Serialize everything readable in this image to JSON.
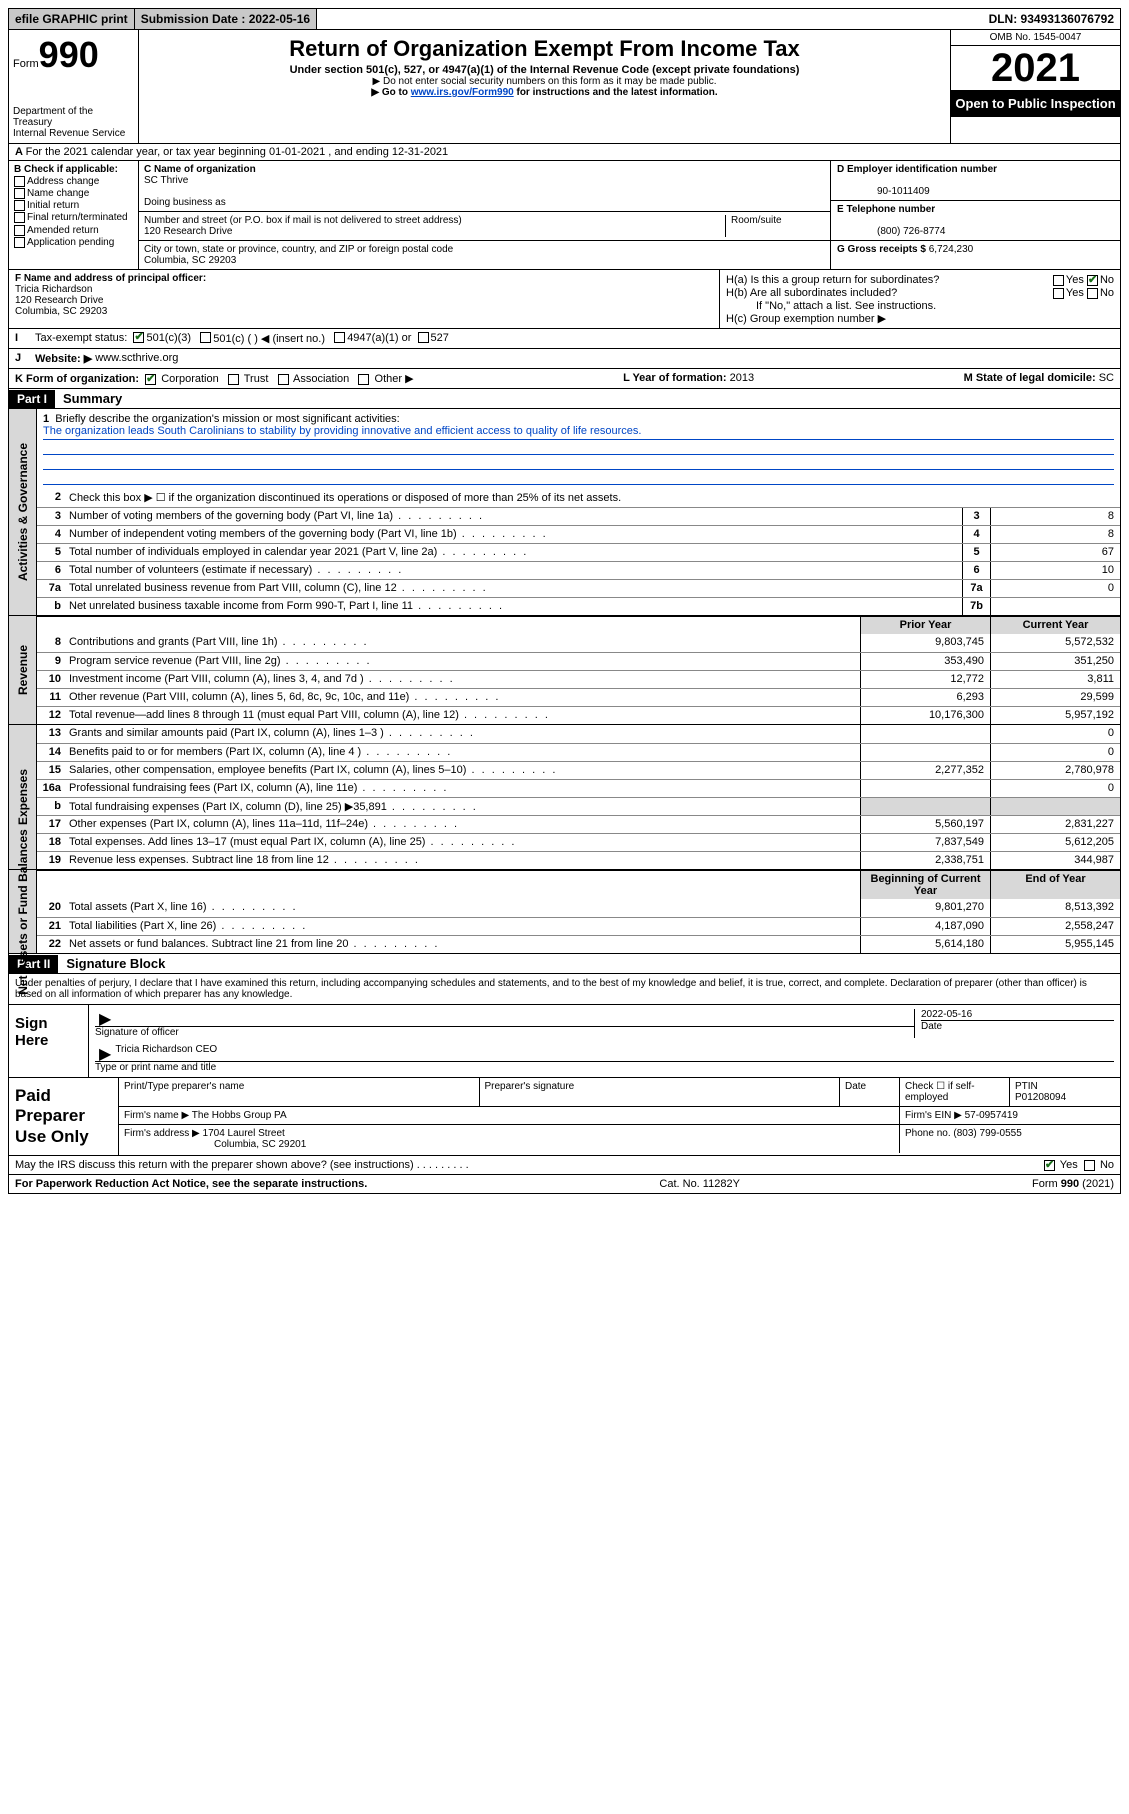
{
  "topbar": {
    "efile": "efile GRAPHIC print",
    "submission_label": "Submission Date : 2022-05-16",
    "dln": "DLN: 93493136076792"
  },
  "header": {
    "form_word": "Form",
    "form_number": "990",
    "dept": "Department of the Treasury",
    "irs": "Internal Revenue Service",
    "title": "Return of Organization Exempt From Income Tax",
    "subtitle": "Under section 501(c), 527, or 4947(a)(1) of the Internal Revenue Code (except private foundations)",
    "warn1": "▶ Do not enter social security numbers on this form as it may be made public.",
    "warn2_pre": "▶ Go to ",
    "warn2_link": "www.irs.gov/Form990",
    "warn2_post": " for instructions and the latest information.",
    "omb": "OMB No. 1545-0047",
    "year": "2021",
    "open": "Open to Public Inspection"
  },
  "rowA": "For the 2021 calendar year, or tax year beginning 01-01-2021   , and ending 12-31-2021",
  "colB": {
    "title": "B Check if applicable:",
    "items": [
      "Address change",
      "Name change",
      "Initial return",
      "Final return/terminated",
      "Amended return",
      "Application pending"
    ]
  },
  "colC": {
    "name_label": "C Name of organization",
    "name": "SC Thrive",
    "dba_label": "Doing business as",
    "street_label": "Number and street (or P.O. box if mail is not delivered to street address)",
    "room_label": "Room/suite",
    "street": "120 Research Drive",
    "city_label": "City or town, state or province, country, and ZIP or foreign postal code",
    "city": "Columbia, SC  29203"
  },
  "colD": {
    "label": "D Employer identification number",
    "value": "90-1011409"
  },
  "colE": {
    "label": "E Telephone number",
    "value": "(800) 726-8774"
  },
  "colG": {
    "label": "G Gross receipts $",
    "value": "6,724,230"
  },
  "colF": {
    "label": "F  Name and address of principal officer:",
    "name": "Tricia Richardson",
    "addr1": "120 Research Drive",
    "addr2": "Columbia, SC  29203"
  },
  "colH": {
    "a": "H(a)  Is this a group return for subordinates?",
    "b": "H(b)  Are all subordinates included?",
    "b_note": "If \"No,\" attach a list. See instructions.",
    "c": "H(c)  Group exemption number ▶",
    "yes": "Yes",
    "no": "No"
  },
  "rowI": {
    "label": "Tax-exempt status:",
    "opts": [
      "501(c)(3)",
      "501(c) (  ) ◀ (insert no.)",
      "4947(a)(1) or",
      "527"
    ]
  },
  "rowJ": {
    "label": "Website: ▶",
    "value": "www.scthrive.org"
  },
  "rowK": {
    "label": "K Form of organization:",
    "opts": [
      "Corporation",
      "Trust",
      "Association",
      "Other ▶"
    ],
    "l_label": "L Year of formation:",
    "l_val": "2013",
    "m_label": "M State of legal domicile:",
    "m_val": "SC"
  },
  "part1": {
    "hdr": "Part I",
    "title": "Summary"
  },
  "mission": {
    "q1": "Briefly describe the organization's mission or most significant activities:",
    "text": "The organization leads South Carolinians to stability by providing innovative and efficient access to quality of life resources."
  },
  "lines_gov": [
    {
      "n": "2",
      "d": "Check this box ▶ ☐  if the organization discontinued its operations or disposed of more than 25% of its net assets."
    },
    {
      "n": "3",
      "d": "Number of voting members of the governing body (Part VI, line 1a)",
      "box": "3",
      "v": "8"
    },
    {
      "n": "4",
      "d": "Number of independent voting members of the governing body (Part VI, line 1b)",
      "box": "4",
      "v": "8"
    },
    {
      "n": "5",
      "d": "Total number of individuals employed in calendar year 2021 (Part V, line 2a)",
      "box": "5",
      "v": "67"
    },
    {
      "n": "6",
      "d": "Total number of volunteers (estimate if necessary)",
      "box": "6",
      "v": "10"
    },
    {
      "n": "7a",
      "d": "Total unrelated business revenue from Part VIII, column (C), line 12",
      "box": "7a",
      "v": "0"
    },
    {
      "n": "b",
      "d": "Net unrelated business taxable income from Form 990-T, Part I, line 11",
      "box": "7b",
      "v": ""
    }
  ],
  "rev_hdr": {
    "prior": "Prior Year",
    "curr": "Current Year"
  },
  "lines_rev": [
    {
      "n": "8",
      "d": "Contributions and grants (Part VIII, line 1h)",
      "p": "9,803,745",
      "c": "5,572,532"
    },
    {
      "n": "9",
      "d": "Program service revenue (Part VIII, line 2g)",
      "p": "353,490",
      "c": "351,250"
    },
    {
      "n": "10",
      "d": "Investment income (Part VIII, column (A), lines 3, 4, and 7d )",
      "p": "12,772",
      "c": "3,811"
    },
    {
      "n": "11",
      "d": "Other revenue (Part VIII, column (A), lines 5, 6d, 8c, 9c, 10c, and 11e)",
      "p": "6,293",
      "c": "29,599"
    },
    {
      "n": "12",
      "d": "Total revenue—add lines 8 through 11 (must equal Part VIII, column (A), line 12)",
      "p": "10,176,300",
      "c": "5,957,192"
    }
  ],
  "lines_exp": [
    {
      "n": "13",
      "d": "Grants and similar amounts paid (Part IX, column (A), lines 1–3 )",
      "p": "",
      "c": "0"
    },
    {
      "n": "14",
      "d": "Benefits paid to or for members (Part IX, column (A), line 4 )",
      "p": "",
      "c": "0"
    },
    {
      "n": "15",
      "d": "Salaries, other compensation, employee benefits (Part IX, column (A), lines 5–10)",
      "p": "2,277,352",
      "c": "2,780,978"
    },
    {
      "n": "16a",
      "d": "Professional fundraising fees (Part IX, column (A), line 11e)",
      "p": "",
      "c": "0"
    },
    {
      "n": "b",
      "d": "Total fundraising expenses (Part IX, column (D), line 25) ▶35,891",
      "p": "grey",
      "c": "grey"
    },
    {
      "n": "17",
      "d": "Other expenses (Part IX, column (A), lines 11a–11d, 11f–24e)",
      "p": "5,560,197",
      "c": "2,831,227"
    },
    {
      "n": "18",
      "d": "Total expenses. Add lines 13–17 (must equal Part IX, column (A), line 25)",
      "p": "7,837,549",
      "c": "5,612,205"
    },
    {
      "n": "19",
      "d": "Revenue less expenses. Subtract line 18 from line 12",
      "p": "2,338,751",
      "c": "344,987"
    }
  ],
  "net_hdr": {
    "begin": "Beginning of Current Year",
    "end": "End of Year"
  },
  "lines_net": [
    {
      "n": "20",
      "d": "Total assets (Part X, line 16)",
      "p": "9,801,270",
      "c": "8,513,392"
    },
    {
      "n": "21",
      "d": "Total liabilities (Part X, line 26)",
      "p": "4,187,090",
      "c": "2,558,247"
    },
    {
      "n": "22",
      "d": "Net assets or fund balances. Subtract line 21 from line 20",
      "p": "5,614,180",
      "c": "5,955,145"
    }
  ],
  "sides": {
    "gov": "Activities & Governance",
    "rev": "Revenue",
    "exp": "Expenses",
    "net": "Net Assets or Fund Balances"
  },
  "part2": {
    "hdr": "Part II",
    "title": "Signature Block"
  },
  "sig": {
    "decl": "Under penalties of perjury, I declare that I have examined this return, including accompanying schedules and statements, and to the best of my knowledge and belief, it is true, correct, and complete. Declaration of preparer (other than officer) is based on all information of which preparer has any knowledge.",
    "sign_here": "Sign Here",
    "sig_officer": "Signature of officer",
    "date": "Date",
    "date_val": "2022-05-16",
    "name_title": "Tricia Richardson CEO",
    "type_label": "Type or print name and title"
  },
  "prep": {
    "title": "Paid Preparer Use Only",
    "h1": "Print/Type preparer's name",
    "h2": "Preparer's signature",
    "h3": "Date",
    "check": "Check ☐ if self-employed",
    "ptin_l": "PTIN",
    "ptin": "P01208094",
    "firm_l": "Firm's name  ▶",
    "firm": "The Hobbs Group PA",
    "ein_l": "Firm's EIN ▶",
    "ein": "57-0957419",
    "addr_l": "Firm's address ▶",
    "addr1": "1704 Laurel Street",
    "addr2": "Columbia, SC  29201",
    "phone_l": "Phone no.",
    "phone": "(803) 799-0555"
  },
  "footer": {
    "discuss": "May the IRS discuss this return with the preparer shown above? (see instructions)",
    "yes": "Yes",
    "no": "No",
    "pra": "For Paperwork Reduction Act Notice, see the separate instructions.",
    "cat": "Cat. No. 11282Y",
    "form": "Form 990 (2021)"
  },
  "colors": {
    "link": "#0046c6",
    "grey": "#d8d8d8",
    "black": "#000000",
    "check": "#1a6e1a"
  }
}
